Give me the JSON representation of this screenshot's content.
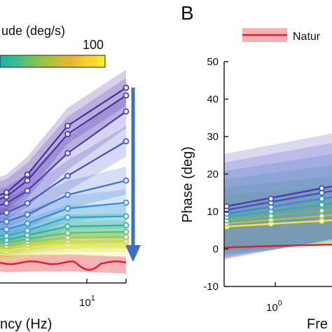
{
  "panel_a": {
    "colorbar_title": "ude (deg/s)",
    "colorbar_max_label": "100",
    "colorbar_colors": [
      "#18b3a8",
      "#3cc08a",
      "#7ec450",
      "#b3c238",
      "#e8b432",
      "#f6d132",
      "#f8ef28"
    ],
    "xlabel": "ncy (Hz)",
    "x_tick_label": "10",
    "x_tick_exp": "1"
  },
  "panel_b": {
    "letter": "B",
    "legend_label": "Natur",
    "legend_color": "#e32027",
    "ylabel": "Phase (deg)",
    "xlabel": "Fre",
    "x_tick_label": "10",
    "x_tick_exp": "0",
    "y_ticks": [
      "50",
      "40",
      "30",
      "20",
      "10",
      "0",
      "-10"
    ]
  },
  "chart_data": [
    {
      "type": "line",
      "panel": "A",
      "x": [
        1.0,
        1.45,
        1.95,
        3.0,
        4.1,
        7.5,
        18.0
      ],
      "series": [
        {
          "values": [
            0.35,
            0.34,
            0.38,
            0.32,
            0.33,
            0.34,
            0.3
          ],
          "color": "#e32027"
        },
        {
          "values": [
            0.44,
            0.5,
            0.58,
            0.54,
            0.6,
            0.64,
            0.63
          ],
          "color": "#f4ec2a"
        },
        {
          "values": [
            0.46,
            0.53,
            0.62,
            0.58,
            0.64,
            0.7,
            0.7
          ],
          "color": "#d8d630"
        },
        {
          "values": [
            0.48,
            0.56,
            0.66,
            0.62,
            0.69,
            0.76,
            0.77
          ],
          "color": "#a6c840"
        },
        {
          "values": [
            0.5,
            0.59,
            0.71,
            0.67,
            0.74,
            0.84,
            0.86
          ],
          "color": "#5fbf6a"
        },
        {
          "values": [
            0.52,
            0.62,
            0.76,
            0.72,
            0.8,
            0.95,
            0.97
          ],
          "color": "#2bb39e"
        },
        {
          "values": [
            0.54,
            0.66,
            0.82,
            0.79,
            0.88,
            1.1,
            1.12
          ],
          "color": "#2aa6c8"
        },
        {
          "values": [
            0.56,
            0.7,
            0.9,
            0.9,
            1.0,
            1.25,
            1.35
          ],
          "color": "#2f8ed8"
        },
        {
          "values": [
            0.58,
            0.75,
            1.0,
            1.03,
            1.15,
            1.48,
            1.72
          ],
          "color": "#3a6fd0"
        },
        {
          "values": [
            0.6,
            0.8,
            1.1,
            1.18,
            1.34,
            1.8,
            2.38
          ],
          "color": "#4351c2"
        },
        {
          "values": [
            0.62,
            0.86,
            1.2,
            1.34,
            1.55,
            2.18,
            2.88
          ],
          "color": "#4a3cb4"
        },
        {
          "values": [
            0.64,
            0.9,
            1.28,
            1.45,
            1.72,
            2.5,
            3.15
          ],
          "color": "#4c30aa"
        },
        {
          "values": [
            0.66,
            0.94,
            1.34,
            1.52,
            1.82,
            2.64,
            3.28
          ],
          "color": "#4e2aa2"
        }
      ]
    },
    {
      "type": "line",
      "panel": "B",
      "xscale": "log",
      "ylabel": "Phase (deg)",
      "xlabel": "Fre",
      "ylim": [
        -10,
        50
      ],
      "y_ticks": [
        -10,
        0,
        10,
        20,
        30,
        40,
        50
      ],
      "x": [
        0.42,
        1.0,
        2.7
      ],
      "series": [
        {
          "name": "Natur",
          "values": [
            0.4,
            0.8,
            1.2
          ],
          "color": "#e32027"
        },
        {
          "values": [
            6.0,
            6.8,
            7.5
          ],
          "color": "#f4ec2a"
        },
        {
          "values": [
            6.8,
            7.8,
            8.8
          ],
          "color": "#b3c238"
        },
        {
          "values": [
            7.6,
            8.8,
            10.2
          ],
          "color": "#5fbf6a"
        },
        {
          "values": [
            8.5,
            10.0,
            11.8
          ],
          "color": "#2bb39e"
        },
        {
          "values": [
            9.4,
            11.2,
            13.4
          ],
          "color": "#2f8ed8"
        },
        {
          "values": [
            10.4,
            12.4,
            15.0
          ],
          "color": "#4351c2"
        },
        {
          "values": [
            11.4,
            13.4,
            16.2
          ],
          "color": "#4a3cb4"
        }
      ]
    }
  ]
}
